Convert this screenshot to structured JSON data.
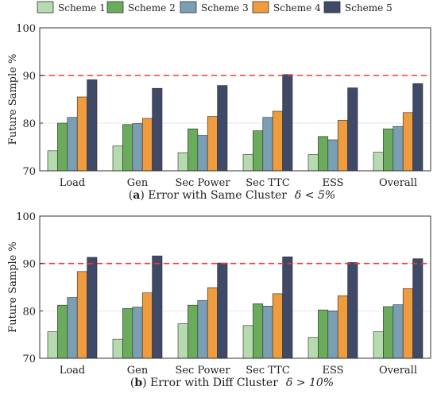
{
  "legend": {
    "entries": [
      "Scheme 1",
      "Scheme 2",
      "Scheme 3",
      "Scheme 4",
      "Scheme 5"
    ],
    "placement": "top"
  },
  "colors": [
    "#b5dbaf",
    "#6aac5c",
    "#7a9eb3",
    "#ee9c3e",
    "#3f4a68"
  ],
  "reference_line_color": "#ee3b33",
  "chart_data": [
    {
      "type": "bar",
      "panel_label": "a",
      "caption": "Error with Same Cluster",
      "caption_math": "δ < 5%",
      "ylabel": "Future Sample %",
      "ylim": [
        70,
        100
      ],
      "yticks": [
        70,
        80,
        90,
        100
      ],
      "reference_line": 90,
      "grid": true,
      "categories": [
        "Load",
        "Gen",
        "Sec Power",
        "Sec TTC",
        "ESS",
        "Overall"
      ],
      "series": [
        {
          "name": "Scheme 1",
          "values": [
            74.2,
            75.2,
            73.8,
            73.4,
            73.4,
            73.9
          ]
        },
        {
          "name": "Scheme 2",
          "values": [
            80.0,
            79.7,
            78.8,
            78.4,
            77.2,
            78.8
          ]
        },
        {
          "name": "Scheme 3",
          "values": [
            81.2,
            79.9,
            77.4,
            81.2,
            76.5,
            79.3
          ]
        },
        {
          "name": "Scheme 4",
          "values": [
            85.5,
            81.0,
            81.4,
            82.5,
            80.6,
            82.2
          ]
        },
        {
          "name": "Scheme 5",
          "values": [
            89.1,
            87.3,
            87.9,
            90.2,
            87.4,
            88.3
          ]
        }
      ]
    },
    {
      "type": "bar",
      "panel_label": "b",
      "caption": "Error with Diff Cluster",
      "caption_math": "δ > 10%",
      "ylabel": "Future Sample %",
      "ylim": [
        70,
        100
      ],
      "yticks": [
        70,
        80,
        90,
        100
      ],
      "reference_line": 90,
      "grid": true,
      "categories": [
        "Load",
        "Gen",
        "Sec Power",
        "Sec TTC",
        "ESS",
        "Overall"
      ],
      "series": [
        {
          "name": "Scheme 1",
          "values": [
            75.6,
            74.0,
            77.3,
            76.9,
            74.4,
            75.6
          ]
        },
        {
          "name": "Scheme 2",
          "values": [
            81.2,
            80.5,
            81.2,
            81.5,
            80.2,
            80.9
          ]
        },
        {
          "name": "Scheme 3",
          "values": [
            82.8,
            80.8,
            82.2,
            81.0,
            80.0,
            81.3
          ]
        },
        {
          "name": "Scheme 4",
          "values": [
            88.3,
            83.8,
            84.9,
            83.6,
            83.2,
            84.7
          ]
        },
        {
          "name": "Scheme 5",
          "values": [
            91.3,
            91.6,
            90.1,
            91.4,
            90.2,
            91.0
          ]
        }
      ]
    }
  ]
}
